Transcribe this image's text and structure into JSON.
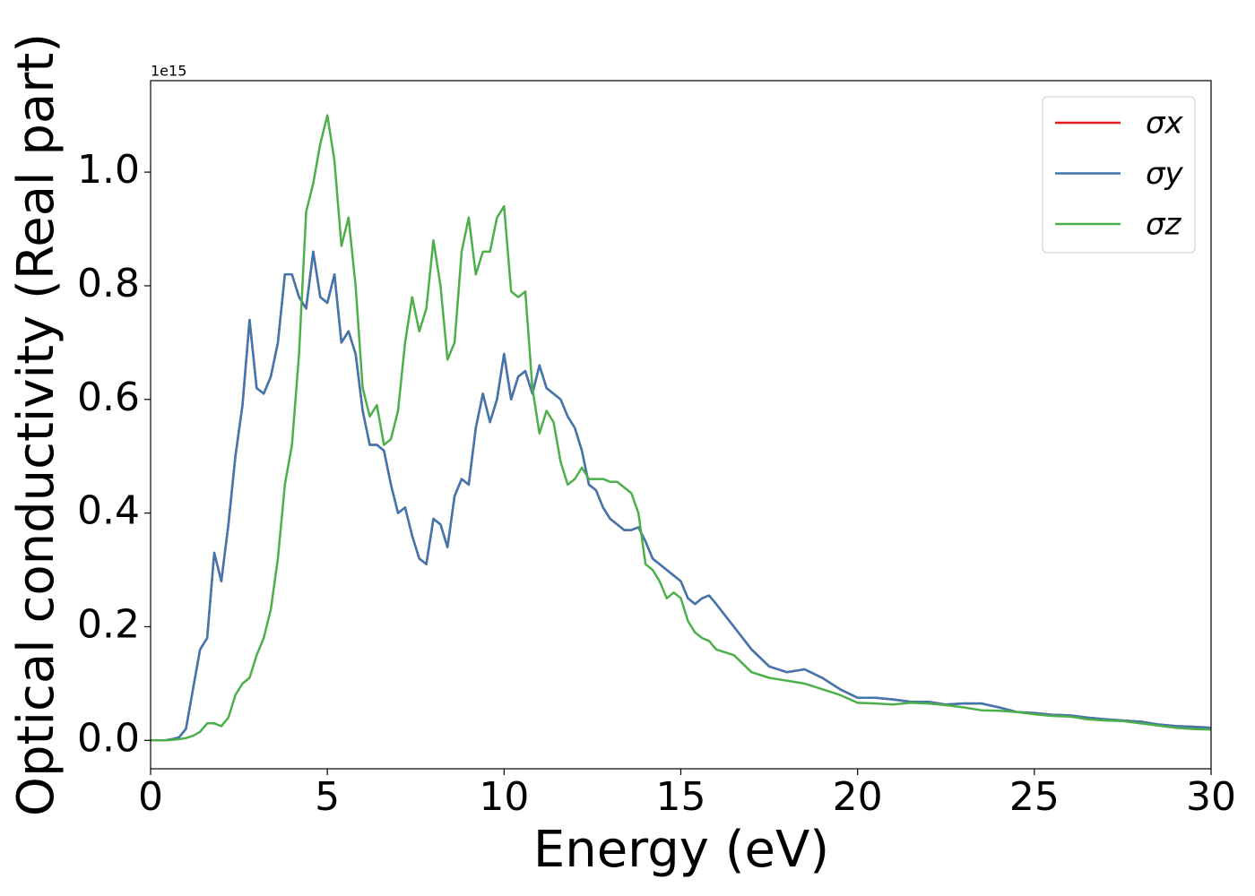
{
  "chart_data": {
    "type": "line",
    "xlabel": "Energy (eV)",
    "ylabel": "Optical conductivity (Real part)",
    "y_offset_text": "1e15",
    "x": [
      0,
      0.2,
      0.4,
      0.6,
      0.8,
      1.0,
      1.2,
      1.4,
      1.6,
      1.8,
      2.0,
      2.2,
      2.4,
      2.6,
      2.8,
      3.0,
      3.2,
      3.4,
      3.6,
      3.8,
      4.0,
      4.2,
      4.4,
      4.6,
      4.8,
      5.0,
      5.2,
      5.4,
      5.6,
      5.8,
      6.0,
      6.2,
      6.4,
      6.6,
      6.8,
      7.0,
      7.2,
      7.4,
      7.6,
      7.8,
      8.0,
      8.2,
      8.4,
      8.6,
      8.8,
      9.0,
      9.2,
      9.4,
      9.6,
      9.8,
      10.0,
      10.2,
      10.4,
      10.6,
      10.8,
      11.0,
      11.2,
      11.4,
      11.6,
      11.8,
      12.0,
      12.2,
      12.4,
      12.6,
      12.8,
      13.0,
      13.2,
      13.4,
      13.6,
      13.8,
      14.0,
      14.2,
      14.4,
      14.6,
      14.8,
      15.0,
      15.2,
      15.4,
      15.6,
      15.8,
      16.0,
      16.5,
      17.0,
      17.5,
      18.0,
      18.5,
      19.0,
      19.5,
      20.0,
      20.5,
      21.0,
      21.5,
      22.0,
      22.5,
      23.0,
      23.5,
      24.0,
      24.5,
      25.0,
      25.5,
      26.0,
      26.5,
      27.0,
      27.5,
      28.0,
      28.5,
      29.0,
      29.5,
      30.0
    ],
    "series": [
      {
        "name": "σx",
        "color": "#e41a1c",
        "values": [
          0,
          0,
          0,
          0.002,
          0.005,
          0.02,
          0.09,
          0.16,
          0.18,
          0.33,
          0.28,
          0.38,
          0.5,
          0.59,
          0.74,
          0.62,
          0.61,
          0.64,
          0.7,
          0.82,
          0.82,
          0.78,
          0.76,
          0.86,
          0.78,
          0.77,
          0.82,
          0.7,
          0.72,
          0.68,
          0.58,
          0.52,
          0.52,
          0.51,
          0.45,
          0.4,
          0.41,
          0.36,
          0.32,
          0.31,
          0.39,
          0.38,
          0.34,
          0.43,
          0.46,
          0.45,
          0.55,
          0.61,
          0.56,
          0.6,
          0.68,
          0.6,
          0.64,
          0.65,
          0.61,
          0.66,
          0.62,
          0.61,
          0.6,
          0.57,
          0.55,
          0.51,
          0.45,
          0.44,
          0.41,
          0.39,
          0.38,
          0.37,
          0.37,
          0.375,
          0.35,
          0.32,
          0.31,
          0.3,
          0.29,
          0.28,
          0.25,
          0.24,
          0.25,
          0.255,
          0.24,
          0.2,
          0.16,
          0.13,
          0.12,
          0.125,
          0.11,
          0.09,
          0.075,
          0.075,
          0.072,
          0.068,
          0.068,
          0.063,
          0.065,
          0.065,
          0.058,
          0.05,
          0.048,
          0.045,
          0.044,
          0.04,
          0.037,
          0.035,
          0.033,
          0.028,
          0.025,
          0.024,
          0.022
        ]
      },
      {
        "name": "σy",
        "color": "#3f77b0",
        "values": [
          0,
          0,
          0,
          0.002,
          0.005,
          0.02,
          0.09,
          0.16,
          0.18,
          0.33,
          0.28,
          0.38,
          0.5,
          0.59,
          0.74,
          0.62,
          0.61,
          0.64,
          0.7,
          0.82,
          0.82,
          0.78,
          0.76,
          0.86,
          0.78,
          0.77,
          0.82,
          0.7,
          0.72,
          0.68,
          0.58,
          0.52,
          0.52,
          0.51,
          0.45,
          0.4,
          0.41,
          0.36,
          0.32,
          0.31,
          0.39,
          0.38,
          0.34,
          0.43,
          0.46,
          0.45,
          0.55,
          0.61,
          0.56,
          0.6,
          0.68,
          0.6,
          0.64,
          0.65,
          0.61,
          0.66,
          0.62,
          0.61,
          0.6,
          0.57,
          0.55,
          0.51,
          0.45,
          0.44,
          0.41,
          0.39,
          0.38,
          0.37,
          0.37,
          0.375,
          0.35,
          0.32,
          0.31,
          0.3,
          0.29,
          0.28,
          0.25,
          0.24,
          0.25,
          0.255,
          0.24,
          0.2,
          0.16,
          0.13,
          0.12,
          0.125,
          0.11,
          0.09,
          0.075,
          0.075,
          0.072,
          0.068,
          0.068,
          0.063,
          0.065,
          0.065,
          0.058,
          0.05,
          0.048,
          0.045,
          0.044,
          0.04,
          0.037,
          0.035,
          0.033,
          0.028,
          0.025,
          0.024,
          0.022
        ]
      },
      {
        "name": "σz",
        "color": "#4daf4a",
        "values": [
          0,
          0,
          0,
          0.001,
          0.002,
          0.004,
          0.008,
          0.015,
          0.03,
          0.03,
          0.025,
          0.04,
          0.08,
          0.1,
          0.11,
          0.15,
          0.18,
          0.23,
          0.32,
          0.45,
          0.52,
          0.68,
          0.93,
          0.98,
          1.05,
          1.1,
          1.02,
          0.87,
          0.92,
          0.8,
          0.62,
          0.57,
          0.59,
          0.52,
          0.53,
          0.58,
          0.7,
          0.78,
          0.72,
          0.76,
          0.88,
          0.8,
          0.67,
          0.7,
          0.86,
          0.92,
          0.82,
          0.86,
          0.86,
          0.92,
          0.94,
          0.79,
          0.78,
          0.79,
          0.62,
          0.54,
          0.58,
          0.56,
          0.49,
          0.45,
          0.46,
          0.48,
          0.46,
          0.46,
          0.46,
          0.455,
          0.455,
          0.445,
          0.435,
          0.4,
          0.31,
          0.3,
          0.28,
          0.25,
          0.26,
          0.25,
          0.21,
          0.19,
          0.18,
          0.175,
          0.16,
          0.15,
          0.12,
          0.11,
          0.105,
          0.1,
          0.09,
          0.08,
          0.066,
          0.065,
          0.063,
          0.066,
          0.065,
          0.062,
          0.058,
          0.053,
          0.052,
          0.05,
          0.046,
          0.043,
          0.042,
          0.037,
          0.035,
          0.034,
          0.03,
          0.026,
          0.022,
          0.02,
          0.019
        ]
      }
    ],
    "xlim": [
      0,
      30
    ],
    "xticks": [
      0,
      5,
      10,
      15,
      20,
      25,
      30
    ],
    "ylim": [
      -0.05,
      1.161
    ],
    "yticks": [
      {
        "value": 0,
        "label": "0.0"
      },
      0.2,
      0.4,
      0.6,
      0.8,
      {
        "value": 1,
        "label": "1.0"
      }
    ],
    "grid": false,
    "legend": "upper right"
  }
}
